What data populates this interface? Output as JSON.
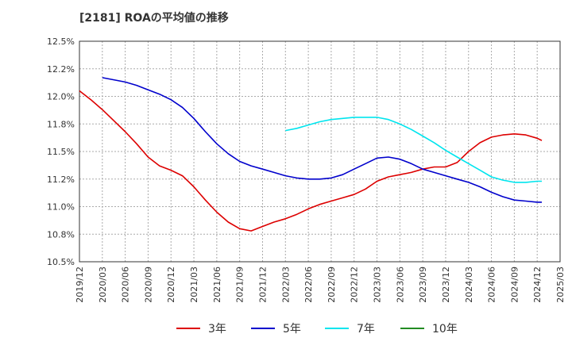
{
  "title": "[2181]  ROAの平均値の推移",
  "chart_data": {
    "type": "line",
    "title": "[2181]  ROAの平均値の推移",
    "xlabel": "",
    "ylabel": "",
    "x_ticks": [
      "2019/12",
      "2020/03",
      "2020/06",
      "2020/09",
      "2020/12",
      "2021/03",
      "2021/06",
      "2021/09",
      "2021/12",
      "2022/03",
      "2022/06",
      "2022/09",
      "2022/12",
      "2023/03",
      "2023/06",
      "2023/09",
      "2023/12",
      "2024/03",
      "2024/06",
      "2024/09",
      "2024/12",
      "2025/03"
    ],
    "y_ticks": [
      "10.5%",
      "10.8%",
      "11.0%",
      "11.2%",
      "11.5%",
      "11.8%",
      "12.0%",
      "12.2%",
      "12.5%"
    ],
    "ylim": [
      10.5,
      12.5
    ],
    "grid": true,
    "legend_position": "bottom",
    "series": [
      {
        "name": "3年",
        "color": "#dd0000",
        "points": [
          [
            0,
            12.05
          ],
          [
            0.5,
            11.97
          ],
          [
            1,
            11.88
          ],
          [
            1.5,
            11.78
          ],
          [
            2,
            11.68
          ],
          [
            2.5,
            11.57
          ],
          [
            3,
            11.45
          ],
          [
            3.5,
            11.37
          ],
          [
            4,
            11.33
          ],
          [
            4.5,
            11.28
          ],
          [
            5,
            11.18
          ],
          [
            5.5,
            11.06
          ],
          [
            6,
            10.95
          ],
          [
            6.5,
            10.86
          ],
          [
            7,
            10.8
          ],
          [
            7.5,
            10.78
          ],
          [
            8,
            10.82
          ],
          [
            8.5,
            10.86
          ],
          [
            9,
            10.89
          ],
          [
            9.5,
            10.93
          ],
          [
            10,
            10.98
          ],
          [
            10.5,
            11.02
          ],
          [
            11,
            11.05
          ],
          [
            11.5,
            11.08
          ],
          [
            12,
            11.11
          ],
          [
            12.5,
            11.16
          ],
          [
            13,
            11.23
          ],
          [
            13.5,
            11.27
          ],
          [
            14,
            11.29
          ],
          [
            14.5,
            11.31
          ],
          [
            15,
            11.34
          ],
          [
            15.5,
            11.36
          ],
          [
            16,
            11.36
          ],
          [
            16.5,
            11.4
          ],
          [
            17,
            11.5
          ],
          [
            17.5,
            11.58
          ],
          [
            18,
            11.63
          ],
          [
            18.5,
            11.65
          ],
          [
            19,
            11.66
          ],
          [
            19.5,
            11.65
          ],
          [
            20,
            11.62
          ],
          [
            20.2,
            11.6
          ]
        ]
      },
      {
        "name": "5年",
        "color": "#0000cc",
        "points": [
          [
            1,
            12.17
          ],
          [
            1.5,
            12.15
          ],
          [
            2,
            12.13
          ],
          [
            2.5,
            12.1
          ],
          [
            3,
            12.06
          ],
          [
            3.5,
            12.02
          ],
          [
            4,
            11.97
          ],
          [
            4.5,
            11.9
          ],
          [
            5,
            11.8
          ],
          [
            5.5,
            11.68
          ],
          [
            6,
            11.57
          ],
          [
            6.5,
            11.48
          ],
          [
            7,
            11.41
          ],
          [
            7.5,
            11.37
          ],
          [
            8,
            11.34
          ],
          [
            8.5,
            11.31
          ],
          [
            9,
            11.28
          ],
          [
            9.5,
            11.26
          ],
          [
            10,
            11.25
          ],
          [
            10.5,
            11.25
          ],
          [
            11,
            11.26
          ],
          [
            11.5,
            11.29
          ],
          [
            12,
            11.34
          ],
          [
            12.5,
            11.39
          ],
          [
            13,
            11.44
          ],
          [
            13.5,
            11.45
          ],
          [
            14,
            11.43
          ],
          [
            14.5,
            11.39
          ],
          [
            15,
            11.34
          ],
          [
            15.5,
            11.31
          ],
          [
            16,
            11.28
          ],
          [
            16.5,
            11.25
          ],
          [
            17,
            11.22
          ],
          [
            17.5,
            11.18
          ],
          [
            18,
            11.13
          ],
          [
            18.5,
            11.09
          ],
          [
            19,
            11.06
          ],
          [
            19.5,
            11.05
          ],
          [
            20,
            11.04
          ],
          [
            20.2,
            11.04
          ]
        ]
      },
      {
        "name": "7年",
        "color": "#00e5ee",
        "points": [
          [
            9,
            11.69
          ],
          [
            9.5,
            11.71
          ],
          [
            10,
            11.74
          ],
          [
            10.5,
            11.77
          ],
          [
            11,
            11.79
          ],
          [
            11.5,
            11.8
          ],
          [
            12,
            11.81
          ],
          [
            12.5,
            11.81
          ],
          [
            13,
            11.81
          ],
          [
            13.5,
            11.79
          ],
          [
            14,
            11.75
          ],
          [
            14.5,
            11.7
          ],
          [
            15,
            11.64
          ],
          [
            15.5,
            11.58
          ],
          [
            16,
            11.51
          ],
          [
            16.5,
            11.45
          ],
          [
            17,
            11.39
          ],
          [
            17.5,
            11.33
          ],
          [
            18,
            11.27
          ],
          [
            18.5,
            11.24
          ],
          [
            19,
            11.22
          ],
          [
            19.5,
            11.22
          ],
          [
            20,
            11.23
          ],
          [
            20.2,
            11.23
          ]
        ]
      },
      {
        "name": "10年",
        "color": "#228b22",
        "points": []
      }
    ]
  }
}
